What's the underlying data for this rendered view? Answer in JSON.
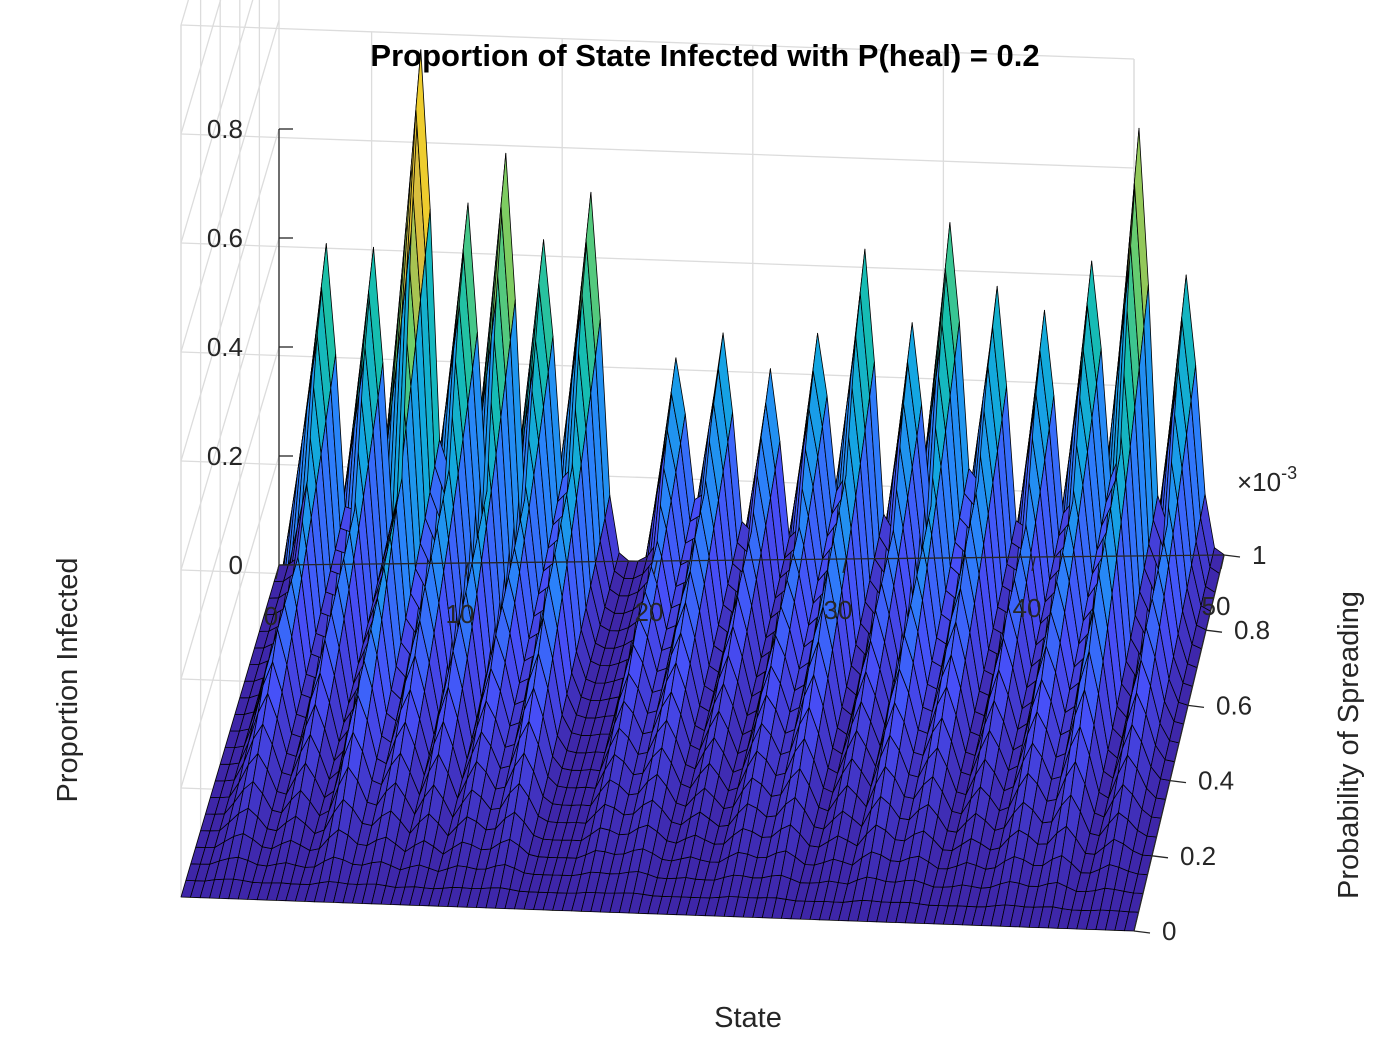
{
  "chart_data": {
    "type": "surface",
    "title": "Proportion of State Infected with P(heal) = 0.2",
    "xlabel": "State",
    "ylabel": "Probability of Spreading",
    "zlabel": "Proportion Infected",
    "x_ticks": [
      "0",
      "10",
      "20",
      "30",
      "40",
      "50"
    ],
    "y_ticks": [
      "0",
      "0.2",
      "0.4",
      "0.6",
      "0.8",
      "1"
    ],
    "z_ticks": [
      "0",
      "0.2",
      "0.4",
      "0.6",
      "0.8"
    ],
    "y_exponent_base": "×10",
    "y_exponent_power": "-3",
    "xlim": [
      0,
      50
    ],
    "ylim": [
      0,
      0.001
    ],
    "zlim": [
      0,
      1.6
    ],
    "colormap": "parula",
    "grid": true,
    "peaks": [
      {
        "state": 2.5,
        "height": 0.55
      },
      {
        "state": 5,
        "height": 0.63
      },
      {
        "state": 7.5,
        "height": 0.92
      },
      {
        "state": 10,
        "height": 0.64
      },
      {
        "state": 12,
        "height": 0.8
      },
      {
        "state": 14,
        "height": 0.59
      },
      {
        "state": 16.5,
        "height": 0.64
      },
      {
        "state": 21,
        "height": 0.37
      },
      {
        "state": 23.5,
        "height": 0.38
      },
      {
        "state": 26,
        "height": 0.4
      },
      {
        "state": 28.5,
        "height": 0.39
      },
      {
        "state": 31,
        "height": 0.55
      },
      {
        "state": 33.5,
        "height": 0.48
      },
      {
        "state": 35.5,
        "height": 0.59
      },
      {
        "state": 38,
        "height": 0.48
      },
      {
        "state": 40.5,
        "height": 0.5
      },
      {
        "state": 43,
        "height": 0.5
      },
      {
        "state": 45.5,
        "height": 0.79
      },
      {
        "state": 48,
        "height": 0.55
      }
    ]
  }
}
